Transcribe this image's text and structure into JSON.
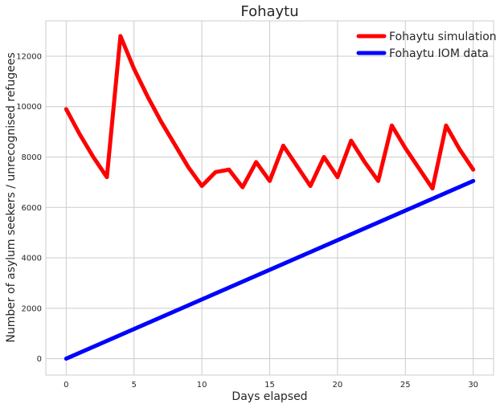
{
  "chart_data": {
    "type": "line",
    "title": "Fohaytu",
    "xlabel": "Days elapsed",
    "ylabel": "Number of asylum seekers / unrecognised refugees",
    "xlim": [
      -1.5,
      31.5
    ],
    "ylim": [
      -650,
      13400
    ],
    "xticks": [
      0,
      5,
      10,
      15,
      20,
      25,
      30
    ],
    "yticks": [
      0,
      2000,
      4000,
      6000,
      8000,
      10000,
      12000
    ],
    "grid": true,
    "legend_position": "top-right",
    "x": [
      0,
      1,
      2,
      3,
      4,
      5,
      6,
      7,
      8,
      9,
      10,
      11,
      12,
      13,
      14,
      15,
      16,
      17,
      18,
      19,
      20,
      21,
      22,
      23,
      24,
      25,
      26,
      27,
      28,
      29,
      30
    ],
    "series": [
      {
        "name": "Fohaytu simulation",
        "color": "#ff0000",
        "values": [
          9900,
          8900,
          8000,
          7200,
          12800,
          11500,
          10400,
          9400,
          8500,
          7600,
          6850,
          7400,
          7500,
          6800,
          7800,
          7050,
          8450,
          7650,
          6850,
          8000,
          7200,
          8650,
          7800,
          7050,
          9250,
          8350,
          7550,
          6750,
          9250,
          8300,
          7500
        ]
      },
      {
        "name": "Fohaytu IOM data",
        "color": "#0000ff",
        "values": [
          0,
          235,
          470,
          705,
          940,
          1175,
          1410,
          1645,
          1880,
          2115,
          2350,
          2585,
          2820,
          3055,
          3290,
          3525,
          3760,
          3995,
          4230,
          4465,
          4700,
          4935,
          5170,
          5405,
          5640,
          5875,
          6110,
          6345,
          6580,
          6815,
          7050
        ]
      }
    ]
  }
}
